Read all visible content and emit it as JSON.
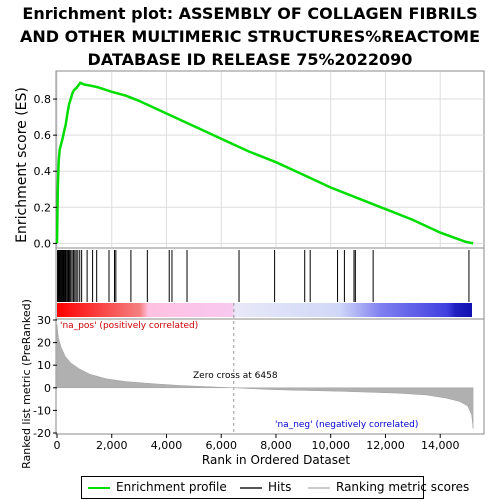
{
  "title_lines": [
    "Enrichment plot: ASSEMBLY OF COLLAGEN FIBRILS",
    "AND OTHER MULTIMERIC STRUCTURES%REACTOME",
    "DATABASE ID RELEASE 75%2022090"
  ],
  "colors": {
    "enrichment": "#00dd00",
    "hits": "#000000",
    "ranking_fill": "#b0b0b0",
    "pos_label": "#cc0000",
    "neg_label": "#0000cc"
  },
  "chart_data": [
    {
      "type": "line",
      "name": "enrichment-profile",
      "ylabel": "Enrichment score (ES)",
      "xlim": [
        0,
        15600
      ],
      "ylim": [
        -0.02,
        0.95
      ],
      "yticks": [
        0.0,
        0.2,
        0.4,
        0.6,
        0.8
      ],
      "ytick_labels": [
        "0.0",
        "0.2",
        "0.4",
        "0.6",
        "0.8"
      ],
      "grid": true,
      "points": [
        [
          0,
          0.0
        ],
        [
          30,
          0.3
        ],
        [
          60,
          0.45
        ],
        [
          100,
          0.52
        ],
        [
          150,
          0.55
        ],
        [
          200,
          0.58
        ],
        [
          260,
          0.62
        ],
        [
          320,
          0.66
        ],
        [
          380,
          0.72
        ],
        [
          440,
          0.77
        ],
        [
          500,
          0.8
        ],
        [
          560,
          0.83
        ],
        [
          620,
          0.85
        ],
        [
          700,
          0.86
        ],
        [
          780,
          0.875
        ],
        [
          850,
          0.89
        ],
        [
          1000,
          0.88
        ],
        [
          1200,
          0.875
        ],
        [
          1500,
          0.865
        ],
        [
          2000,
          0.84
        ],
        [
          2500,
          0.82
        ],
        [
          3000,
          0.79
        ],
        [
          4000,
          0.72
        ],
        [
          5000,
          0.65
        ],
        [
          6000,
          0.58
        ],
        [
          7000,
          0.51
        ],
        [
          8000,
          0.45
        ],
        [
          9000,
          0.38
        ],
        [
          10000,
          0.31
        ],
        [
          11000,
          0.25
        ],
        [
          12000,
          0.19
        ],
        [
          13000,
          0.13
        ],
        [
          14000,
          0.06
        ],
        [
          14900,
          0.01
        ],
        [
          15200,
          0.0
        ]
      ]
    },
    {
      "type": "hits",
      "name": "hits",
      "positions": [
        20,
        40,
        60,
        80,
        100,
        130,
        160,
        190,
        220,
        250,
        280,
        310,
        340,
        380,
        420,
        460,
        500,
        550,
        600,
        650,
        700,
        760,
        830,
        900,
        1100,
        1300,
        1450,
        1900,
        2100,
        2150,
        2700,
        3300,
        4100,
        4200,
        4750,
        6650,
        7950,
        9050,
        9250,
        10250,
        10500,
        10850,
        10900,
        11550,
        15050
      ]
    },
    {
      "type": "area",
      "name": "ranked-list-metric",
      "ylabel": "Ranked list metric (PreRanked)",
      "xlabel": "Rank in Ordered Dataset",
      "xlim": [
        0,
        15600
      ],
      "ylim": [
        -20,
        30
      ],
      "yticks": [
        -20,
        -10,
        0,
        10,
        20,
        30
      ],
      "ytick_labels": [
        "-20",
        "-10",
        "0",
        "10",
        "20",
        "30"
      ],
      "xticks": [
        0,
        2000,
        4000,
        6000,
        8000,
        10000,
        12000,
        14000
      ],
      "xtick_labels": [
        "0",
        "2,000",
        "4,000",
        "6,000",
        "8,000",
        "10,000",
        "12,000",
        "14,000"
      ],
      "points": [
        [
          0,
          28
        ],
        [
          50,
          22
        ],
        [
          150,
          18
        ],
        [
          300,
          14
        ],
        [
          500,
          11
        ],
        [
          800,
          8.5
        ],
        [
          1200,
          6
        ],
        [
          1800,
          4
        ],
        [
          2500,
          2.8
        ],
        [
          3500,
          1.8
        ],
        [
          4500,
          1.0
        ],
        [
          5500,
          0.5
        ],
        [
          6458,
          0
        ],
        [
          7500,
          -0.6
        ],
        [
          8500,
          -1.0
        ],
        [
          9500,
          -1.3
        ],
        [
          10500,
          -1.6
        ],
        [
          11500,
          -2.0
        ],
        [
          12500,
          -2.4
        ],
        [
          13500,
          -3.2
        ],
        [
          14200,
          -4.5
        ],
        [
          14700,
          -6
        ],
        [
          15000,
          -8
        ],
        [
          15150,
          -12
        ],
        [
          15200,
          -18
        ]
      ],
      "zero_cross": 6458,
      "zero_cross_label": "Zero cross at 6458",
      "pos_label": "'na_pos' (positively correlated)",
      "neg_label": "'na_neg' (negatively correlated)"
    }
  ],
  "legend": [
    {
      "label": "Enrichment profile",
      "color": "#00dd00"
    },
    {
      "label": "Hits",
      "color": "#555555"
    },
    {
      "label": "Ranking metric scores",
      "color": "#cccccc"
    }
  ]
}
